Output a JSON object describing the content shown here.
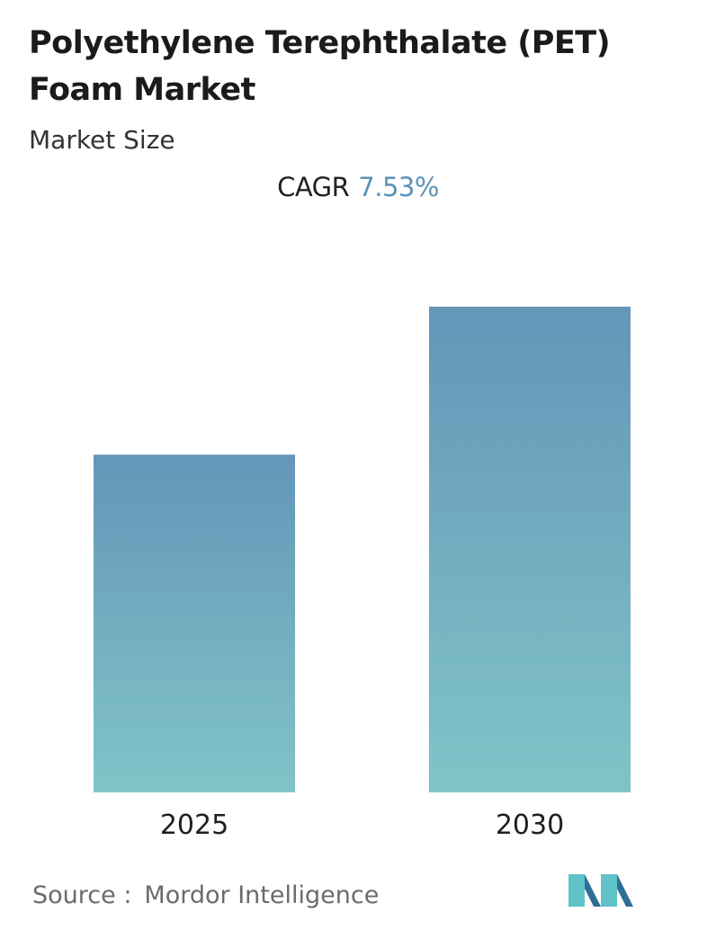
{
  "header": {
    "title": "Polyethylene Terephthalate (PET) Foam Market",
    "subtitle": "Market Size"
  },
  "cagr": {
    "label": "CAGR",
    "value": "7.53%"
  },
  "colors": {
    "bar_top": "#6496b8",
    "bar_bottom": "#80c4c8",
    "cagr_accent": "#5b93b8",
    "logo_dark": "#2f6e94",
    "logo_light": "#5fc3c8"
  },
  "chart_data": {
    "type": "bar",
    "categories": [
      "2025",
      "2030"
    ],
    "values": [
      100,
      143.8
    ],
    "ylim": [
      0,
      143.8
    ],
    "grid": false
  },
  "footer": {
    "source_label": "Source :",
    "source_value": "Mordor Intelligence",
    "logo_icon": "mordor-intelligence-logo-icon"
  }
}
